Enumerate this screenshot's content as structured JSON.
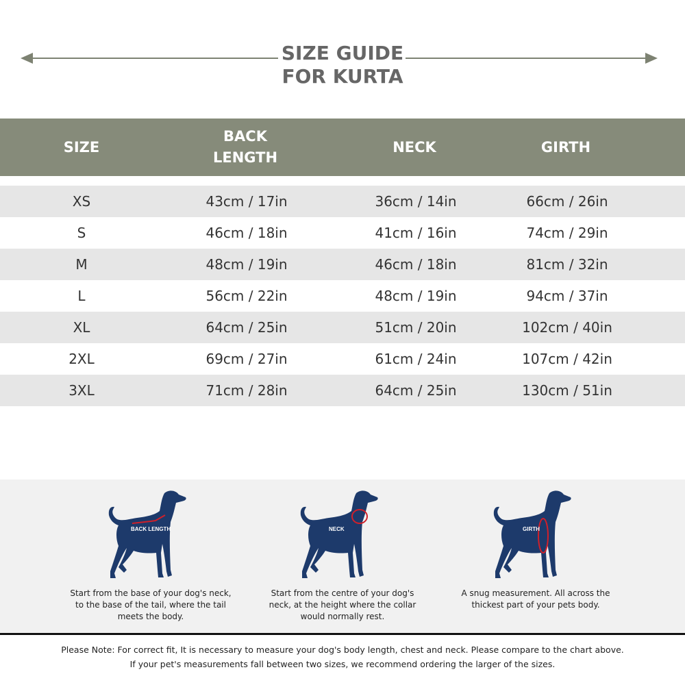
{
  "title": {
    "line1": "SIZE GUIDE",
    "line2": "FOR KURTA"
  },
  "table": {
    "headers": [
      "SIZE",
      "BACK\nLENGTH",
      "NECK",
      "GIRTH"
    ],
    "header_lines": {
      "back1": "BACK",
      "back2": "LENGTH"
    },
    "rows": [
      [
        "XS",
        "43cm / 17in",
        "36cm / 14in",
        "66cm / 26in"
      ],
      [
        "S",
        "46cm / 18in",
        "41cm / 16in",
        "74cm / 29in"
      ],
      [
        "M",
        "48cm / 19in",
        "46cm / 18in",
        "81cm / 32in"
      ],
      [
        "L",
        "56cm / 22in",
        "48cm / 19in",
        "94cm / 37in"
      ],
      [
        "XL",
        "64cm / 25in",
        "51cm / 20in",
        "102cm / 40in"
      ],
      [
        "2XL",
        "69cm / 27in",
        "61cm / 24in",
        "107cm / 42in"
      ],
      [
        "3XL",
        "71cm / 28in",
        "64cm / 25in",
        "130cm / 51in"
      ]
    ]
  },
  "guides": [
    {
      "label": "BACK LENGTH",
      "text": "Start from the base of your dog's neck, to the base of the tail, where the tail meets the body."
    },
    {
      "label": "NECK",
      "text": "Start from the centre of your dog's neck, at the height where the  collar would normally rest."
    },
    {
      "label": "GIRTH",
      "text": "A snug measurement. All across the thickest part of your pets body."
    }
  ],
  "note": {
    "line1": "Please Note: For correct fit, It is necessary to measure your dog's body length, chest and neck. Please compare to the chart above.",
    "line2": "If your pet's measurements fall between two sizes, we recommend ordering the larger of the sizes."
  },
  "colors": {
    "header": "#868b7a",
    "dog": "#1d3a6b",
    "measure": "#d0202a"
  }
}
